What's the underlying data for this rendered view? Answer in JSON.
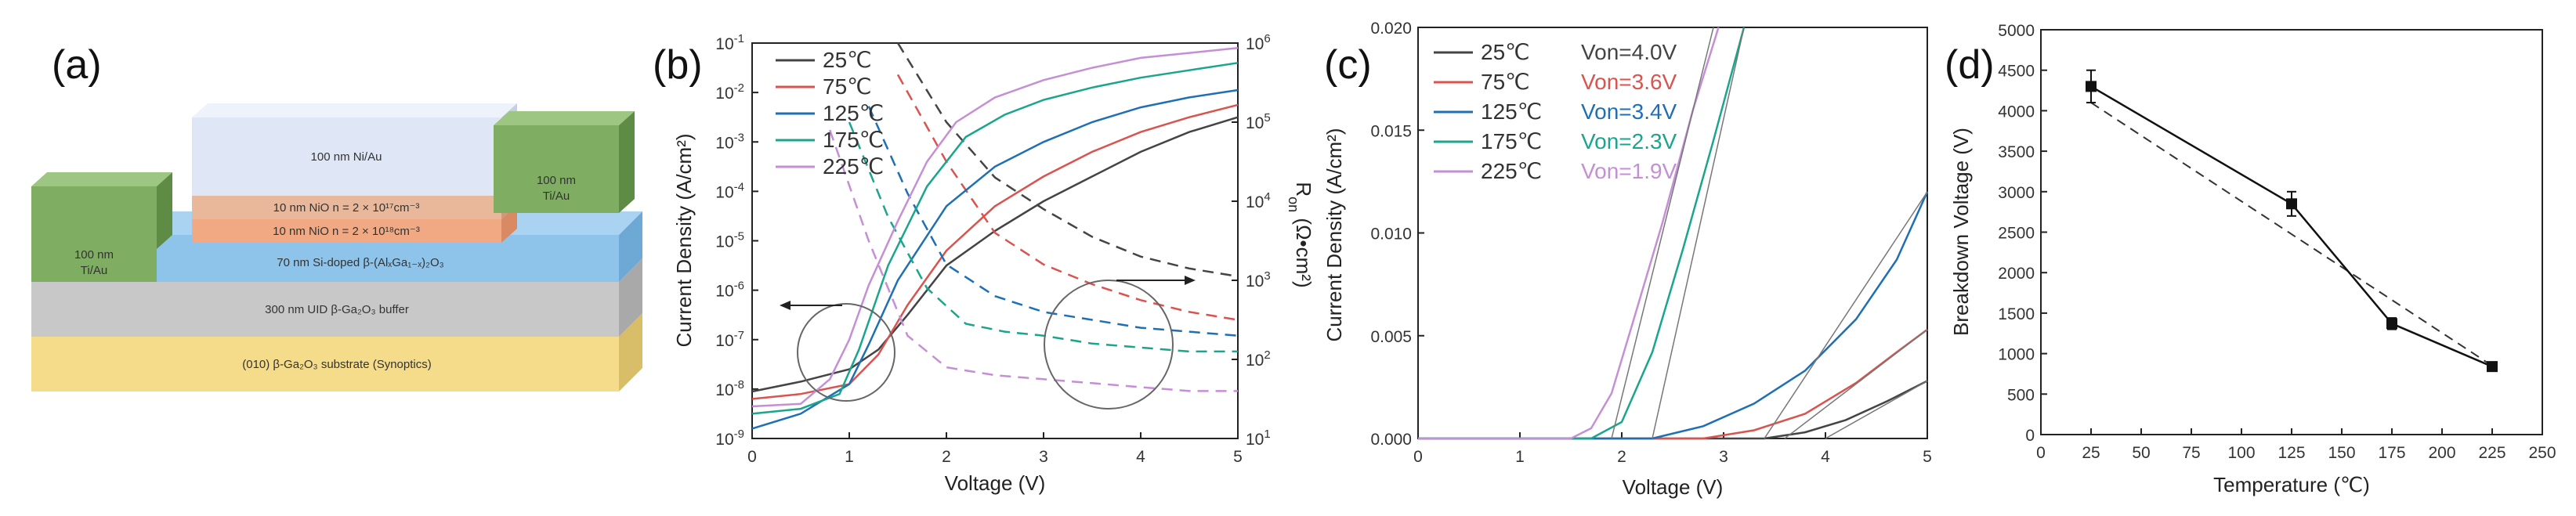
{
  "panels": {
    "a": "(a)",
    "b": "(b)",
    "c": "(c)",
    "d": "(d)"
  },
  "device": {
    "cap_label": "100 nm Ni/Au",
    "nio_top_label": "10 nm NiO n = 2 × 10¹⁷cm⁻³",
    "nio_bottom_label": "10 nm NiO n = 2 × 10¹⁸cm⁻³",
    "channel_label": "70 nm Si-doped β-(AlₓGa₁₋ₓ)₂O₃",
    "buffer_label": "300 nm UID β-Ga₂O₃ buffer",
    "substrate_label": "(010) β-Ga₂O₃ substrate (Synoptics)",
    "contact_left_1": "100 nm",
    "contact_left_2": "Ti/Au",
    "contact_right_1": "100 nm",
    "contact_right_2": "Ti/Au",
    "colors": {
      "cap": "#dfe7f7",
      "nio_top": "#e9b89b",
      "nio_bottom": "#f0a982",
      "channel": "#8fc4ea",
      "buffer": "#c8c8c8",
      "substrate": "#f5dc8a",
      "contact": "#7fae62"
    }
  },
  "chart_data": [
    {
      "id": "b",
      "type": "line",
      "xlabel": "Voltage (V)",
      "ylabel": "Current Density (A/cm²)",
      "y2label": "R_on (Ω•cm²)",
      "y2label_main": "R",
      "y2label_sub": "on",
      "y2label_rest": " (Ω•cm²)",
      "xlim": [
        0,
        5
      ],
      "ylim_log": [
        -9,
        -1
      ],
      "y2lim_log": [
        1,
        6
      ],
      "xticks": [
        "0",
        "1",
        "2",
        "3",
        "4",
        "5"
      ],
      "yticks": [
        {
          "m": "10",
          "e": "-9"
        },
        {
          "m": "10",
          "e": "-8"
        },
        {
          "m": "10",
          "e": "-7"
        },
        {
          "m": "10",
          "e": "-6"
        },
        {
          "m": "10",
          "e": "-5"
        },
        {
          "m": "10",
          "e": "-4"
        },
        {
          "m": "10",
          "e": "-3"
        },
        {
          "m": "10",
          "e": "-2"
        },
        {
          "m": "10",
          "e": "-1"
        }
      ],
      "y2ticks": [
        {
          "m": "10",
          "e": "1"
        },
        {
          "m": "10",
          "e": "2"
        },
        {
          "m": "10",
          "e": "3"
        },
        {
          "m": "10",
          "e": "4"
        },
        {
          "m": "10",
          "e": "5"
        },
        {
          "m": "10",
          "e": "6"
        }
      ],
      "series": [
        {
          "name": "25℃",
          "color": "#444444",
          "x": [
            0,
            0.5,
            1,
            1.3,
            1.6,
            2,
            2.5,
            3,
            3.5,
            4,
            4.5,
            5
          ],
          "log_j": [
            -8.05,
            -7.85,
            -7.6,
            -7.2,
            -6.5,
            -5.5,
            -4.8,
            -4.2,
            -3.7,
            -3.2,
            -2.8,
            -2.5
          ],
          "ron_x": [
            1.5,
            2,
            2.5,
            3,
            3.5,
            4,
            4.5,
            5
          ],
          "ron_log": [
            6.0,
            5.0,
            4.3,
            3.9,
            3.55,
            3.3,
            3.15,
            3.05
          ]
        },
        {
          "name": "75℃",
          "color": "#d9534f",
          "x": [
            0,
            0.5,
            1,
            1.3,
            1.6,
            2,
            2.5,
            3,
            3.5,
            4,
            4.5,
            5
          ],
          "log_j": [
            -8.2,
            -8.1,
            -7.9,
            -7.3,
            -6.3,
            -5.2,
            -4.3,
            -3.7,
            -3.2,
            -2.8,
            -2.5,
            -2.25
          ],
          "ron_x": [
            1.5,
            2,
            2.5,
            3,
            3.5,
            4,
            4.5,
            5
          ],
          "ron_log": [
            5.6,
            4.5,
            3.6,
            3.2,
            2.95,
            2.75,
            2.6,
            2.5
          ]
        },
        {
          "name": "125℃",
          "color": "#1f6fb5",
          "x": [
            0,
            0.5,
            1,
            1.2,
            1.5,
            2,
            2.5,
            3,
            3.5,
            4,
            4.5,
            5
          ],
          "log_j": [
            -8.8,
            -8.5,
            -7.9,
            -7.1,
            -5.8,
            -4.3,
            -3.5,
            -3.0,
            -2.6,
            -2.3,
            -2.1,
            -1.95
          ],
          "ron_x": [
            1.2,
            1.6,
            2,
            2.5,
            3,
            3.5,
            4,
            4.5,
            5
          ],
          "ron_log": [
            5.2,
            4.1,
            3.2,
            2.8,
            2.6,
            2.5,
            2.4,
            2.35,
            2.3
          ]
        },
        {
          "name": "175℃",
          "color": "#1aa58c",
          "x": [
            0,
            0.5,
            0.9,
            1.1,
            1.4,
            1.8,
            2.2,
            2.6,
            3,
            3.5,
            4,
            4.5,
            5
          ],
          "log_j": [
            -8.5,
            -8.4,
            -8.1,
            -7.2,
            -5.5,
            -3.9,
            -2.9,
            -2.45,
            -2.15,
            -1.9,
            -1.7,
            -1.55,
            -1.4
          ],
          "ron_x": [
            1.0,
            1.4,
            1.8,
            2.2,
            2.6,
            3,
            3.5,
            4,
            4.5,
            5
          ],
          "ron_log": [
            5.0,
            3.8,
            2.9,
            2.45,
            2.35,
            2.3,
            2.2,
            2.15,
            2.1,
            2.1
          ]
        },
        {
          "name": "225℃",
          "color": "#c58fd6",
          "x": [
            0,
            0.5,
            0.8,
            1.0,
            1.2,
            1.5,
            1.8,
            2.1,
            2.5,
            3,
            3.5,
            4,
            4.5,
            5
          ],
          "log_j": [
            -8.35,
            -8.3,
            -7.8,
            -7.0,
            -5.9,
            -4.6,
            -3.4,
            -2.6,
            -2.1,
            -1.75,
            -1.5,
            -1.3,
            -1.2,
            -1.1
          ],
          "ron_x": [
            0.8,
            1.2,
            1.6,
            2.0,
            2.5,
            3,
            3.5,
            4,
            4.5,
            5
          ],
          "ron_log": [
            4.9,
            3.5,
            2.3,
            1.9,
            1.8,
            1.75,
            1.7,
            1.65,
            1.6,
            1.6
          ]
        }
      ]
    },
    {
      "id": "c",
      "type": "line",
      "xlabel": "Voltage (V)",
      "ylabel": "Current Density (A/cm²)",
      "xlim": [
        0,
        5
      ],
      "ylim": [
        0,
        0.02
      ],
      "xticks": [
        "0",
        "1",
        "2",
        "3",
        "4",
        "5"
      ],
      "yticks": [
        "0.000",
        "0.005",
        "0.010",
        "0.015",
        "0.020"
      ],
      "series": [
        {
          "name": "25℃",
          "von": "Von=4.0V",
          "color": "#444444",
          "x": [
            3.4,
            3.8,
            4.2,
            4.6,
            5.0
          ],
          "y": [
            0,
            0.0003,
            0.0009,
            0.0018,
            0.0028
          ],
          "tangent": [
            [
              4.0,
              0
            ],
            [
              5.0,
              0.0028
            ]
          ]
        },
        {
          "name": "75℃",
          "von": "Von=3.6V",
          "color": "#d9534f",
          "x": [
            2.8,
            3.3,
            3.8,
            4.3,
            4.7,
            5.0
          ],
          "y": [
            0,
            0.0004,
            0.0012,
            0.0027,
            0.0042,
            0.0053
          ],
          "tangent": [
            [
              3.6,
              0
            ],
            [
              5.0,
              0.0053
            ]
          ]
        },
        {
          "name": "125℃",
          "von": "Von=3.4V",
          "color": "#1f6fb5",
          "x": [
            2.3,
            2.8,
            3.3,
            3.8,
            4.3,
            4.7,
            5.0
          ],
          "y": [
            0,
            0.0006,
            0.0017,
            0.0033,
            0.0058,
            0.0087,
            0.012
          ],
          "tangent": [
            [
              3.4,
              0
            ],
            [
              5.0,
              0.012
            ]
          ]
        },
        {
          "name": "175℃",
          "von": "Von=2.3V",
          "color": "#1aa58c",
          "x": [
            1.7,
            2.0,
            2.3,
            2.6,
            2.9,
            3.2
          ],
          "y": [
            0,
            0.0008,
            0.0042,
            0.0092,
            0.0145,
            0.02
          ],
          "tangent": [
            [
              2.3,
              0
            ],
            [
              3.2,
              0.02
            ]
          ]
        },
        {
          "name": "225℃",
          "von": "Von=1.9V",
          "color": "#c58fd6",
          "x": [
            1.5,
            1.7,
            1.9,
            2.1,
            2.4,
            2.7,
            2.95
          ],
          "y": [
            0,
            0.0005,
            0.0022,
            0.0055,
            0.0105,
            0.016,
            0.02
          ],
          "tangent": [
            [
              1.9,
              0
            ],
            [
              2.9,
              0.02
            ]
          ]
        }
      ]
    },
    {
      "id": "d",
      "type": "line",
      "xlabel": "Temperature (℃)",
      "ylabel": "Breakdown Voltage (V)",
      "xlim": [
        0,
        250
      ],
      "ylim": [
        0,
        5000
      ],
      "xticks": [
        "0",
        "25",
        "50",
        "75",
        "100",
        "125",
        "150",
        "175",
        "200",
        "225",
        "250"
      ],
      "yticks": [
        "0",
        "500",
        "1000",
        "1500",
        "2000",
        "2500",
        "3000",
        "3500",
        "4000",
        "4500",
        "5000"
      ],
      "x": [
        25,
        125,
        175,
        225
      ],
      "y": [
        4300,
        2850,
        1370,
        840
      ],
      "err": [
        200,
        150,
        70,
        40
      ],
      "fit": [
        [
          25,
          4100
        ],
        [
          225,
          850
        ]
      ]
    }
  ]
}
